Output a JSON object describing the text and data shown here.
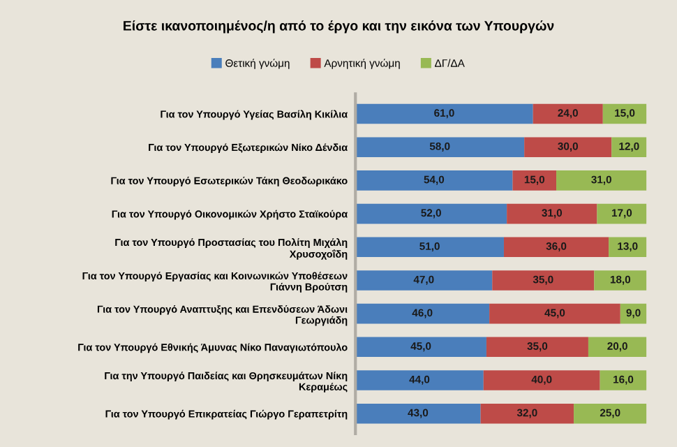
{
  "chart_data": {
    "type": "bar",
    "orientation": "horizontal",
    "stacked": true,
    "title": "Είστε ικανοποιημένος/η από το έργο και την εικόνα των Υπουργών",
    "categories": [
      "Για τον Υπουργό Υγείας Βασίλη Κικίλια",
      "Για τον Υπουργό Εξωτερικών Νίκο Δένδια",
      "Για τον Υπουργό Εσωτερικών Τάκη Θεοδωρικάκο",
      "Για τον Υπουργό Οικονομικών Χρήστο Σταϊκούρα",
      "Για τον Υπουργό Προστασίας του Πολίτη Μιχάλη Χρυσοχοΐδη",
      "Για τον Υπουργό Εργασίας και Κοινωνικών Υποθέσεων Γιάννη Βρούτση",
      "Για τον Υπουργό Αναπτυξης και Επενδύσεων Άδωνι Γεωργιάδη",
      "Για τον Υπουργό Εθνικής Άμυνας Νίκο Παναγιωτόπουλο",
      "Για την Υπουργό Παιδείας και Θρησκευμάτων Νίκη Κεραμέως",
      "Για τον Υπουργό Επικρατείας Γιώργο Γεραπετρίτη"
    ],
    "series": [
      {
        "name": "Θετική γνώμη",
        "color": "#4a7ebb",
        "values": [
          61,
          58,
          54,
          52,
          51,
          47,
          46,
          45,
          44,
          43
        ],
        "value_labels": [
          "61,0",
          "58,0",
          "54,0",
          "52,0",
          "51,0",
          "47,0",
          "46,0",
          "45,0",
          "44,0",
          "43,0"
        ]
      },
      {
        "name": "Αρνητική γνώμη",
        "color": "#be4b48",
        "values": [
          24,
          30,
          15,
          31,
          36,
          35,
          45,
          35,
          40,
          32
        ],
        "value_labels": [
          "24,0",
          "30,0",
          "15,0",
          "31,0",
          "36,0",
          "35,0",
          "45,0",
          "35,0",
          "40,0",
          "32,0"
        ]
      },
      {
        "name": "ΔΓ/ΔΑ",
        "color": "#98b954",
        "values": [
          15,
          12,
          31,
          17,
          13,
          18,
          9,
          20,
          16,
          25
        ],
        "value_labels": [
          "15,0",
          "12,0",
          "31,0",
          "17,0",
          "13,0",
          "18,0",
          "9,0",
          "20,0",
          "16,0",
          "25,0"
        ]
      }
    ],
    "xlim": [
      0,
      100
    ],
    "tick_labels": "y",
    "grid": false,
    "legend": "top"
  }
}
